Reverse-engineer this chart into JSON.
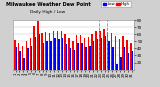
{
  "title": "Milwaukee Weather Dew Point",
  "subtitle": "Daily High / Low",
  "background_color": "#d0d0d0",
  "plot_bg": "#ffffff",
  "days": [
    1,
    2,
    3,
    4,
    5,
    6,
    7,
    8,
    9,
    10,
    11,
    12,
    13,
    14,
    15,
    16,
    17,
    18,
    19,
    20,
    21,
    22,
    23,
    24,
    25,
    26,
    27,
    28,
    29,
    30,
    31
  ],
  "high_values": [
    52,
    48,
    44,
    50,
    54,
    72,
    78,
    62,
    63,
    61,
    64,
    65,
    64,
    60,
    54,
    50,
    59,
    59,
    54,
    56,
    60,
    64,
    65,
    67,
    63,
    62,
    58,
    53,
    57,
    52,
    48
  ],
  "low_values": [
    42,
    36,
    26,
    40,
    44,
    56,
    60,
    48,
    50,
    50,
    54,
    53,
    54,
    46,
    40,
    38,
    48,
    48,
    42,
    43,
    50,
    53,
    54,
    58,
    50,
    42,
    18,
    28,
    42,
    34,
    36
  ],
  "high_color": "#ff0000",
  "low_color": "#0000ff",
  "ylim_min": 10,
  "ylim_max": 80,
  "ytick_values": [
    20,
    30,
    40,
    50,
    60,
    70,
    80
  ],
  "ytick_labels": [
    "20",
    "30",
    "40",
    "50",
    "60",
    "70",
    "80"
  ],
  "grid_color": "#bbbbbb",
  "dashed_vline_positions": [
    21.5,
    23.5
  ],
  "legend_labels": [
    "Low",
    "High"
  ],
  "legend_colors": [
    "#0000ff",
    "#ff0000"
  ]
}
